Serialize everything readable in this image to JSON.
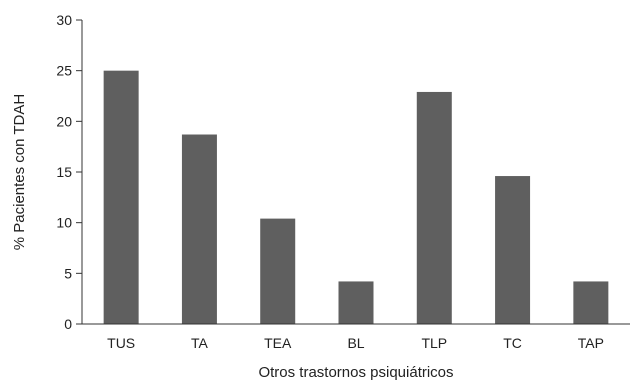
{
  "chart_data": {
    "type": "bar",
    "title": "",
    "xlabel": "Otros trastornos psiquiátricos",
    "ylabel": "% Pacientes con TDAH",
    "categories": [
      "TUS",
      "TA",
      "TEA",
      "BL",
      "TLP",
      "TC",
      "TAP"
    ],
    "values": [
      25.0,
      18.7,
      10.4,
      4.2,
      22.9,
      14.6,
      4.2
    ],
    "ylim": [
      0,
      30
    ],
    "yticks": [
      0,
      5,
      10,
      15,
      20,
      25,
      30
    ],
    "grid": false,
    "legend": "none",
    "bar_color": "#5f5f5f",
    "axis_color": "#333333"
  }
}
